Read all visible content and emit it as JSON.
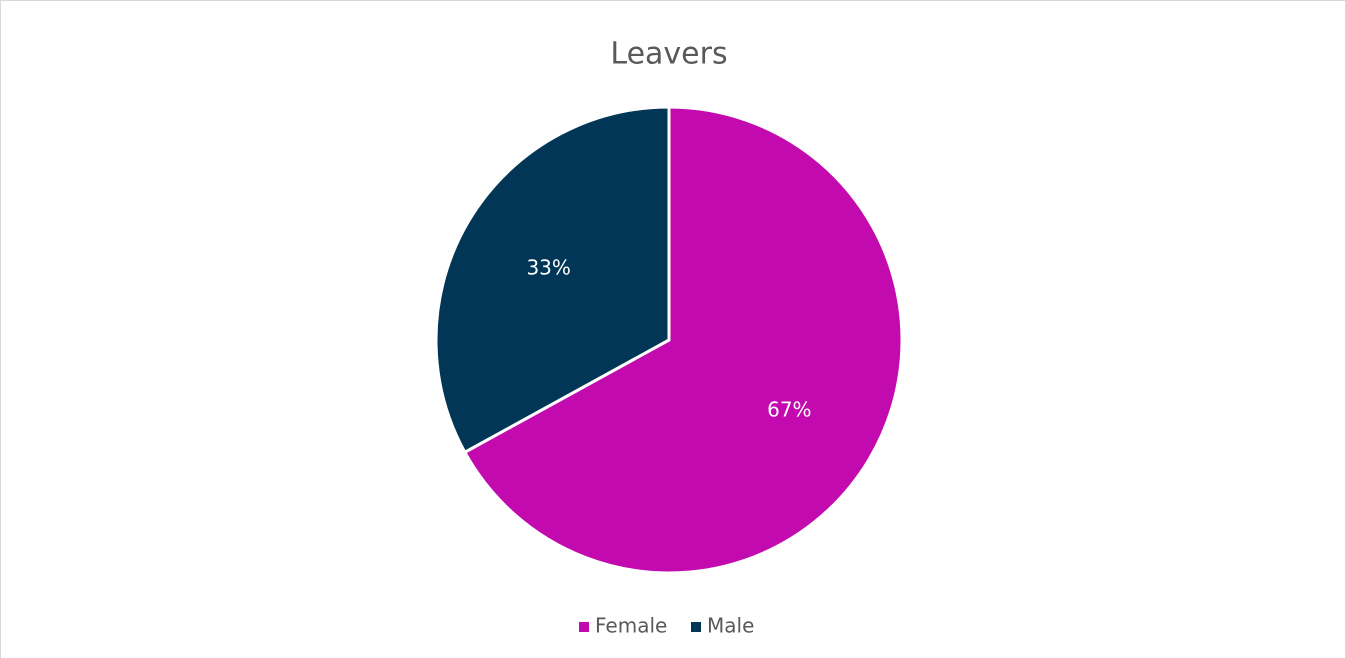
{
  "chart_data": {
    "type": "pie",
    "title": "Leavers",
    "categories": [
      "Female",
      "Male"
    ],
    "values": [
      67,
      33
    ],
    "value_labels": [
      "67%",
      "33%"
    ],
    "colors": [
      "#c20aae",
      "#023656"
    ],
    "legend": "bottom"
  }
}
